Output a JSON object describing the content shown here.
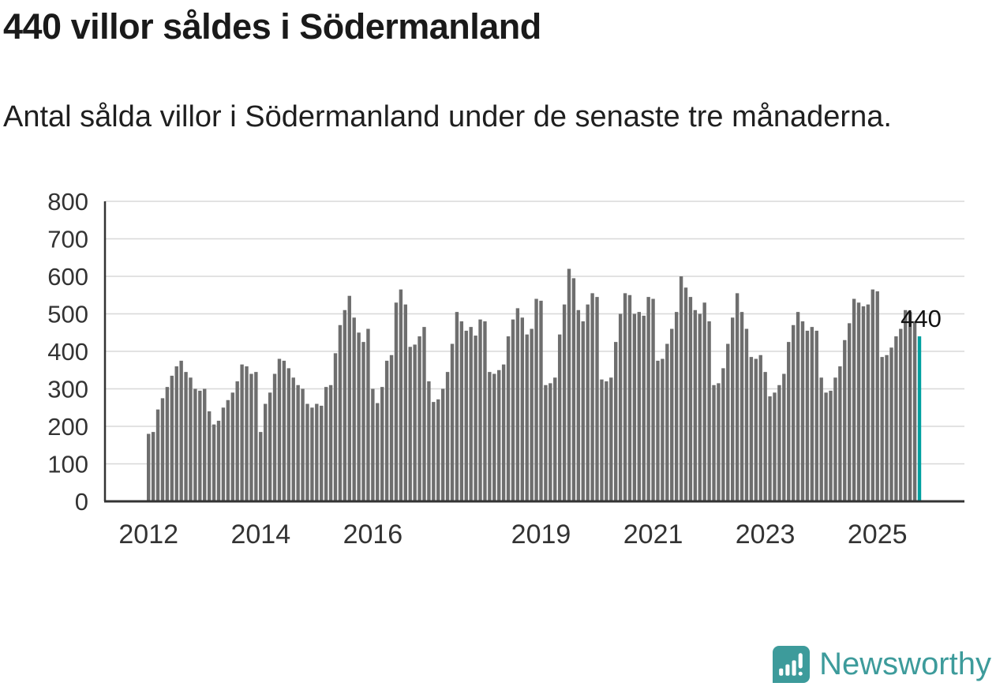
{
  "header": {
    "title": "440 villor såldes i Södermanland",
    "subtitle": "Antal sålda villor i Södermanland under de senaste tre månaderna."
  },
  "chart_data": {
    "type": "bar",
    "title": "440 villor såldes i Södermanland",
    "subtitle": "Antal sålda villor i Södermanland under de senaste tre månaderna.",
    "xlabel": "",
    "ylabel": "",
    "ylim": [
      0,
      800
    ],
    "y_ticks": [
      0,
      100,
      200,
      300,
      400,
      500,
      600,
      700,
      800
    ],
    "x_tick_years": [
      2012,
      2014,
      2016,
      2019,
      2021,
      2023,
      2025
    ],
    "x_monthly_start": "2012-01",
    "x_monthly_end": "2025-10",
    "grid": true,
    "bar_color": "#6e6e6e",
    "grid_color": "#d8d8d8",
    "axis_color": "#333333",
    "values": [
      180,
      185,
      245,
      275,
      305,
      335,
      360,
      375,
      345,
      330,
      300,
      295,
      300,
      240,
      205,
      215,
      250,
      270,
      290,
      320,
      365,
      360,
      340,
      345,
      185,
      260,
      290,
      340,
      380,
      375,
      355,
      330,
      310,
      300,
      260,
      250,
      260,
      255,
      305,
      310,
      395,
      470,
      510,
      548,
      490,
      450,
      425,
      460,
      300,
      262,
      305,
      375,
      390,
      530,
      565,
      525,
      412,
      418,
      440,
      465,
      320,
      265,
      272,
      300,
      345,
      420,
      505,
      480,
      455,
      465,
      442,
      485,
      480,
      345,
      340,
      350,
      365,
      440,
      485,
      515,
      490,
      445,
      460,
      540,
      535,
      310,
      315,
      330,
      445,
      525,
      620,
      595,
      510,
      480,
      525,
      555,
      545,
      325,
      320,
      330,
      425,
      500,
      555,
      550,
      500,
      505,
      495,
      545,
      540,
      375,
      380,
      420,
      460,
      505,
      600,
      570,
      545,
      510,
      500,
      530,
      480,
      310,
      315,
      355,
      420,
      490,
      555,
      505,
      460,
      385,
      380,
      390,
      345,
      280,
      290,
      310,
      340,
      425,
      470,
      505,
      480,
      455,
      465,
      455,
      330,
      290,
      295,
      330,
      360,
      430,
      475,
      540,
      530,
      520,
      525,
      565,
      560,
      385,
      390,
      410,
      440,
      460,
      510,
      505,
      480,
      440
    ],
    "highlight": {
      "index": 165,
      "value": 440,
      "label": "440",
      "color": "#00a0a0"
    }
  },
  "footer": {
    "brand": "Newsworthy",
    "brand_color": "#3d9b9b",
    "logo_icon": "bar-chart-exclamation-icon"
  }
}
